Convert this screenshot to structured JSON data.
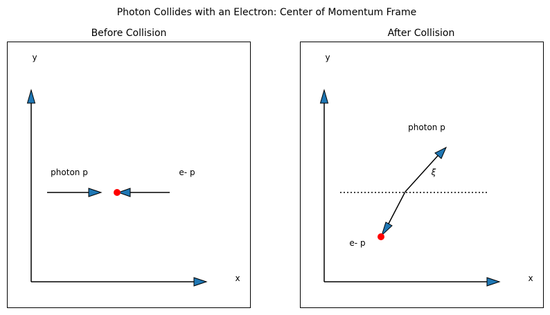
{
  "figure": {
    "title": "Photon Collides with an Electron: Center of Momentum Frame"
  },
  "panels": [
    {
      "title": "Before Collision",
      "x_label": "x",
      "y_label": "y",
      "photon_label": "photon p",
      "electron_label": "e- p"
    },
    {
      "title": "After Collision",
      "x_label": "x",
      "y_label": "y",
      "photon_label": "photon p",
      "electron_label": "e- p",
      "angle_label": "ξ"
    }
  ],
  "colors": {
    "arrow_fill": "#1f77b4",
    "electron": "#ff0000",
    "line": "#000000"
  }
}
